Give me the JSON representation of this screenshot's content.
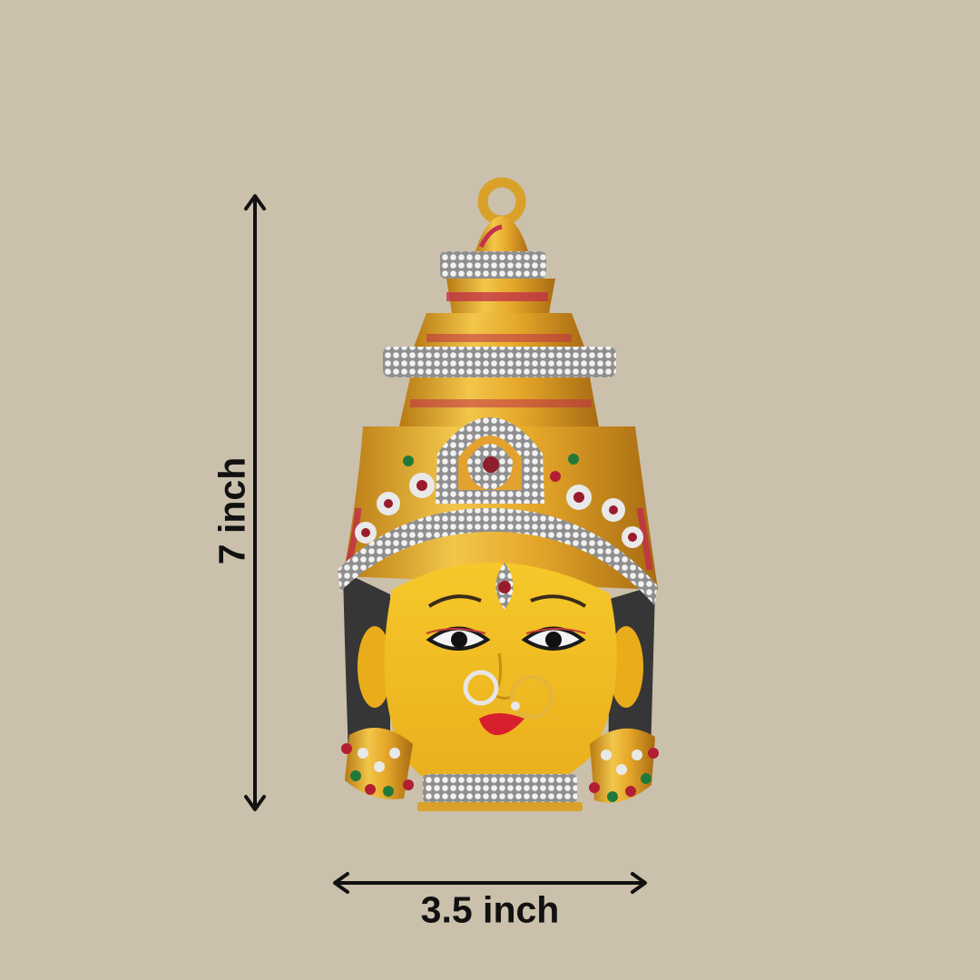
{
  "dimensions": {
    "height_label": "7 inch",
    "width_label": "3.5 inch"
  },
  "colors": {
    "background": "#cbc0ab",
    "arrow": "#111111",
    "gold": "#e2a92a",
    "face": "#f2c125",
    "hair": "#3a3a3a",
    "stone_silver": "#dcdcdc",
    "stone_red": "#9a1c2c",
    "stone_green": "#1f7a3a",
    "lips": "#d81f2e"
  },
  "icons": {
    "height_arrow": "double-headed-vertical-arrow",
    "width_arrow": "double-headed-horizontal-arrow"
  }
}
